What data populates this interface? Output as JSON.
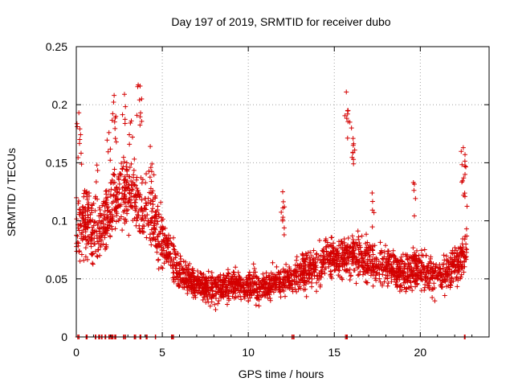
{
  "chart_data": {
    "type": "scatter",
    "title": "Day 197 of 2019, SRMTID for receiver dubo",
    "xlabel": "GPS time / hours",
    "ylabel": "SRMTID / TECUs",
    "xlim": [
      0,
      24
    ],
    "ylim": [
      0,
      0.25
    ],
    "xticks": [
      0,
      5,
      10,
      15,
      20
    ],
    "yticks": [
      0,
      0.05,
      0.1,
      0.15,
      0.2,
      0.25
    ],
    "xtick_labels": [
      "0",
      "5",
      "10",
      "15",
      "20"
    ],
    "ytick_labels": [
      "0",
      "0.05",
      "0.1",
      "0.15",
      "0.2",
      "0.25"
    ],
    "grid": true,
    "marker": "+",
    "color": "#d40000",
    "trend": [
      {
        "x": 0.0,
        "y": 0.095
      },
      {
        "x": 0.5,
        "y": 0.1
      },
      {
        "x": 1.0,
        "y": 0.088
      },
      {
        "x": 1.5,
        "y": 0.092
      },
      {
        "x": 2.0,
        "y": 0.11
      },
      {
        "x": 2.5,
        "y": 0.125
      },
      {
        "x": 3.0,
        "y": 0.125
      },
      {
        "x": 3.5,
        "y": 0.12
      },
      {
        "x": 4.0,
        "y": 0.11
      },
      {
        "x": 4.5,
        "y": 0.1
      },
      {
        "x": 5.0,
        "y": 0.085
      },
      {
        "x": 5.5,
        "y": 0.07
      },
      {
        "x": 6.0,
        "y": 0.055
      },
      {
        "x": 7.0,
        "y": 0.045
      },
      {
        "x": 8.0,
        "y": 0.042
      },
      {
        "x": 9.0,
        "y": 0.045
      },
      {
        "x": 10.0,
        "y": 0.045
      },
      {
        "x": 11.0,
        "y": 0.045
      },
      {
        "x": 12.0,
        "y": 0.048
      },
      {
        "x": 13.0,
        "y": 0.055
      },
      {
        "x": 14.0,
        "y": 0.06
      },
      {
        "x": 15.0,
        "y": 0.07
      },
      {
        "x": 16.0,
        "y": 0.07
      },
      {
        "x": 17.0,
        "y": 0.065
      },
      {
        "x": 18.0,
        "y": 0.06
      },
      {
        "x": 19.0,
        "y": 0.055
      },
      {
        "x": 20.0,
        "y": 0.06
      },
      {
        "x": 21.0,
        "y": 0.05
      },
      {
        "x": 22.0,
        "y": 0.06
      },
      {
        "x": 22.7,
        "y": 0.075
      }
    ],
    "spikes": [
      {
        "x": 0.15,
        "y": 0.193
      },
      {
        "x": 0.2,
        "y": 0.17
      },
      {
        "x": 1.2,
        "y": 0.148
      },
      {
        "x": 1.9,
        "y": 0.176
      },
      {
        "x": 2.2,
        "y": 0.208
      },
      {
        "x": 2.3,
        "y": 0.19
      },
      {
        "x": 2.8,
        "y": 0.209
      },
      {
        "x": 3.2,
        "y": 0.186
      },
      {
        "x": 3.6,
        "y": 0.217
      },
      {
        "x": 3.8,
        "y": 0.205
      },
      {
        "x": 4.3,
        "y": 0.164
      },
      {
        "x": 4.4,
        "y": 0.149
      },
      {
        "x": 12.0,
        "y": 0.125
      },
      {
        "x": 12.1,
        "y": 0.112
      },
      {
        "x": 15.7,
        "y": 0.211
      },
      {
        "x": 15.8,
        "y": 0.195
      },
      {
        "x": 16.0,
        "y": 0.18
      },
      {
        "x": 16.1,
        "y": 0.165
      },
      {
        "x": 17.2,
        "y": 0.124
      },
      {
        "x": 19.6,
        "y": 0.133
      },
      {
        "x": 22.5,
        "y": 0.163
      },
      {
        "x": 22.6,
        "y": 0.157
      },
      {
        "x": 22.6,
        "y": 0.14
      }
    ],
    "zeros": [
      0.1,
      0.6,
      1.1,
      1.3,
      1.5,
      1.7,
      1.9,
      2.1,
      2.3,
      2.8,
      3.4,
      3.7,
      4.1,
      4.6,
      5.6,
      12.6,
      15.7,
      22.6
    ]
  }
}
